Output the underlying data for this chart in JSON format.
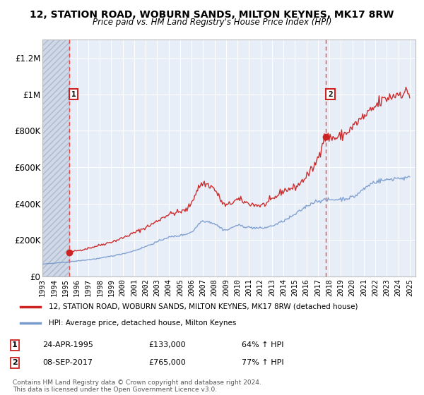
{
  "title": "12, STATION ROAD, WOBURN SANDS, MILTON KEYNES, MK17 8RW",
  "subtitle": "Price paid vs. HM Land Registry's House Price Index (HPI)",
  "footer": "Contains HM Land Registry data © Crown copyright and database right 2024.\nThis data is licensed under the Open Government Licence v3.0.",
  "legend_label1": "12, STATION ROAD, WOBURN SANDS, MILTON KEYNES, MK17 8RW (detached house)",
  "legend_label2": "HPI: Average price, detached house, Milton Keynes",
  "transaction1": {
    "date": "24-APR-1995",
    "price": 133000,
    "label": "£133,000",
    "hpi_pct": "64% ↑ HPI",
    "year": 1995.31
  },
  "transaction2": {
    "date": "08-SEP-2017",
    "price": 765000,
    "label": "£765,000",
    "hpi_pct": "77% ↑ HPI",
    "year": 2017.69
  },
  "table_row1": [
    "1",
    "24-APR-1995",
    "£133,000",
    "64% ↑ HPI"
  ],
  "table_row2": [
    "2",
    "08-SEP-2017",
    "£765,000",
    "77% ↑ HPI"
  ],
  "ylim": [
    0,
    1300000
  ],
  "xlim": [
    1993.0,
    2025.5
  ],
  "yticks": [
    0,
    200000,
    400000,
    600000,
    800000,
    1000000,
    1200000
  ],
  "ytick_labels": [
    "£0",
    "£200K",
    "£400K",
    "£600K",
    "£800K",
    "£1M",
    "£1.2M"
  ],
  "xticks": [
    1993,
    1994,
    1995,
    1996,
    1997,
    1998,
    1999,
    2000,
    2001,
    2002,
    2003,
    2004,
    2005,
    2006,
    2007,
    2008,
    2009,
    2010,
    2011,
    2012,
    2013,
    2014,
    2015,
    2016,
    2017,
    2018,
    2019,
    2020,
    2021,
    2022,
    2023,
    2024,
    2025
  ],
  "plot_bg": "#e8eef8",
  "hatch_bg": "#d0d8e8",
  "red_color": "#cc2222",
  "blue_color": "#7799cc",
  "dashed_color": "#ee4444",
  "title_fontsize": 10,
  "subtitle_fontsize": 8.5
}
